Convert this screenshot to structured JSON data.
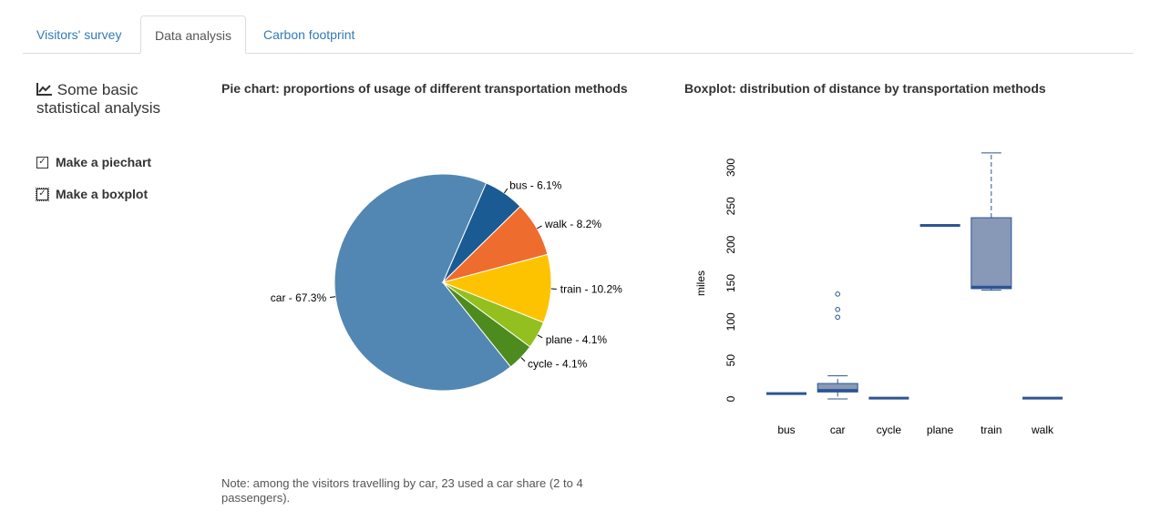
{
  "tabs": [
    {
      "label": "Visitors' survey"
    },
    {
      "label": "Data analysis",
      "active": true
    },
    {
      "label": "Carbon footprint"
    }
  ],
  "sidebar": {
    "icon": "line-chart-icon",
    "title": "Some basic statistical analysis",
    "checkboxes": [
      {
        "label": "Make a piechart",
        "checked": true
      },
      {
        "label": "Make a boxplot",
        "checked": true
      }
    ]
  },
  "pie": {
    "title": "Pie chart: proportions of usage of different transportation methods"
  },
  "boxplot": {
    "title": "Boxplot: distribution of distance by transportation methods"
  },
  "note": "Note: among the visitors travelling by car, 23 used a car share (2 to 4 passengers).",
  "chart_data": [
    {
      "type": "pie",
      "title": "Pie chart: proportions of usage of different transportation methods",
      "slices": [
        {
          "name": "bus",
          "value": 6.1,
          "label": "bus - 6.1%",
          "color": "#1b5b93"
        },
        {
          "name": "car",
          "value": 67.3,
          "label": "car - 67.3%",
          "color": "#5187b2"
        },
        {
          "name": "cycle",
          "value": 4.1,
          "label": "cycle - 4.1%",
          "color": "#4e8b1f"
        },
        {
          "name": "plane",
          "value": 4.1,
          "label": "plane - 4.1%",
          "color": "#93c01f"
        },
        {
          "name": "train",
          "value": 10.2,
          "label": "train - 10.2%",
          "color": "#fec300"
        },
        {
          "name": "walk",
          "value": 8.2,
          "label": "walk - 8.2%",
          "color": "#ee6c2e"
        }
      ]
    },
    {
      "type": "boxplot",
      "title": "Boxplot: distribution of distance by transportation methods",
      "ylabel": "miles",
      "ylim": [
        0,
        300
      ],
      "yticks": [
        0,
        50,
        100,
        150,
        200,
        250,
        300
      ],
      "box_color": "#8899b8",
      "line_color": "#2c5592",
      "groups": [
        {
          "name": "bus",
          "min": 7,
          "q1": 7,
          "median": 7,
          "q3": 7,
          "max": 7,
          "outliers": []
        },
        {
          "name": "car",
          "min": 0,
          "q1": 9,
          "median": 11,
          "q3": 20,
          "max": 30,
          "outliers": [
            106,
            116,
            136
          ]
        },
        {
          "name": "cycle",
          "min": 1,
          "q1": 1,
          "median": 1,
          "q3": 1,
          "max": 1,
          "outliers": []
        },
        {
          "name": "plane",
          "min": 225,
          "q1": 225,
          "median": 225,
          "q3": 225,
          "max": 225,
          "outliers": []
        },
        {
          "name": "train",
          "min": 141,
          "q1": 143,
          "median": 145,
          "q3": 235,
          "max": 319,
          "outliers": []
        },
        {
          "name": "walk",
          "min": 1,
          "q1": 1,
          "median": 1,
          "q3": 1,
          "max": 1,
          "outliers": []
        }
      ]
    }
  ]
}
